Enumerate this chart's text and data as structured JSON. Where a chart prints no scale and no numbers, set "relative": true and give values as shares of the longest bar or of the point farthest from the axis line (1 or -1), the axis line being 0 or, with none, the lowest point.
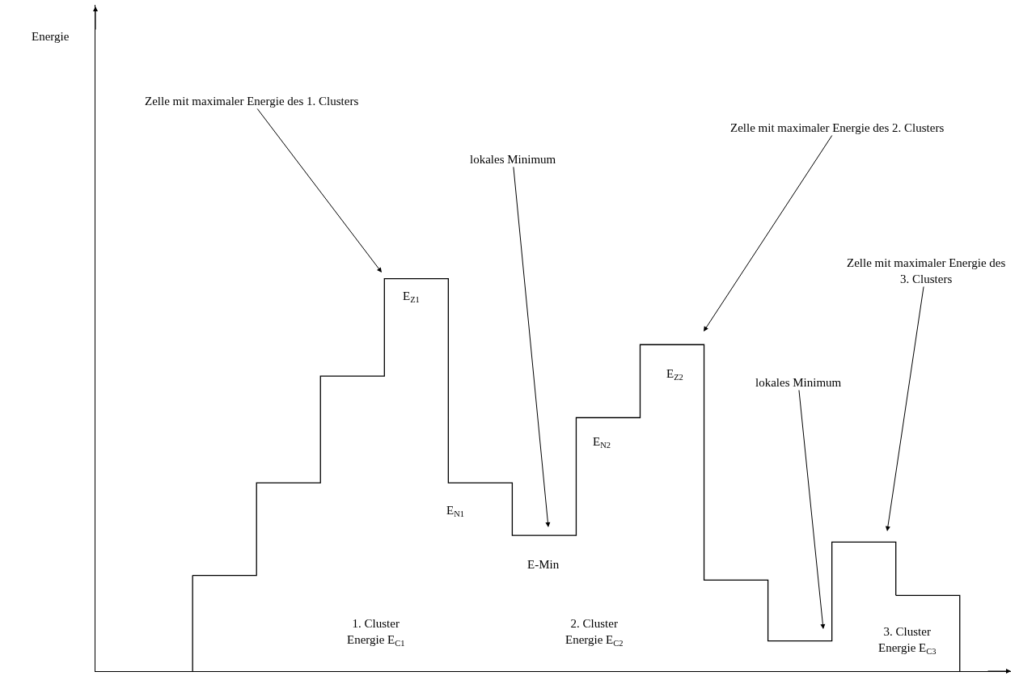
{
  "chart_data": {
    "type": "step",
    "relative": true,
    "categories": [
      null,
      null,
      null,
      null,
      null,
      null,
      null,
      null,
      null,
      null,
      null,
      null
    ],
    "series": [
      {
        "color": "#000000",
        "values": [
          0.244,
          0.48,
          0.752,
          1,
          0.48,
          0.346,
          0.646,
          0.832,
          0.232,
          0.077,
          0.329,
          0.193
        ]
      }
    ],
    "annotations": [
      "Zelle mit maximaler Energie des 1. Clusters",
      "lokales Minimum",
      "Zelle mit maximaler Energie des 2. Clusters",
      "Zelle mit maximaler Energie des\n3. Clusters",
      "lokales Minimum",
      "E$_{Z1}$",
      "E$_{N1}$",
      "E-Min",
      "E$_{N2}$",
      "E$_{Z2}$",
      "1. Cluster\nEnergie E$_{C1}$",
      "2. Cluster\nEnergie E$_{C2}$",
      "3. Cluster\nEnergie E$_{C3}$",
      "Energie"
    ]
  }
}
